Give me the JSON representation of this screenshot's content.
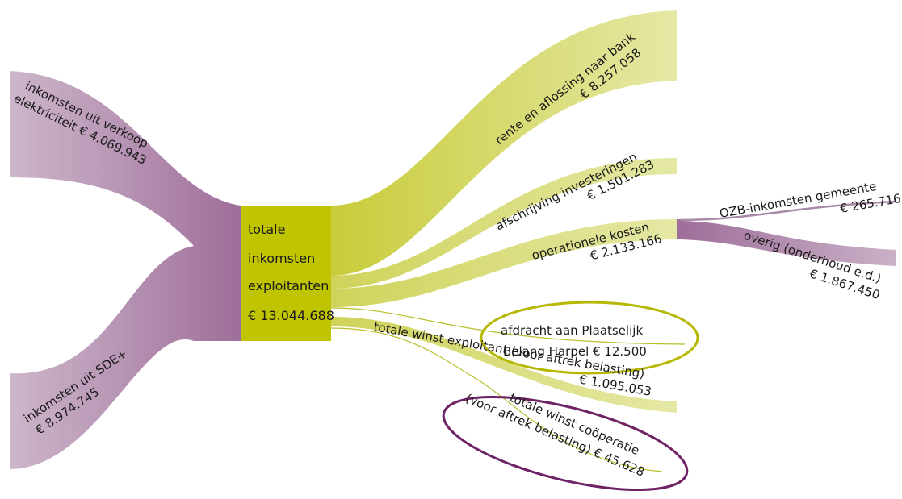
{
  "colors": {
    "purple": "#9f6e9a",
    "purple_light": "#cdb7cb",
    "green_node": "#c1c400",
    "green_flow": "#d6da7c",
    "green_light": "#e5e8a5",
    "green_line": "#b9bf2a",
    "ellipse_green": "#b5b700",
    "ellipse_purple": "#6e2266",
    "thin_purple": "#a889a8"
  },
  "chart_data": {
    "type": "sankey",
    "currency": "€",
    "center_node": {
      "lines": [
        "totale",
        "inkomsten",
        "exploitanten"
      ],
      "amount": "€ 13.044.688"
    },
    "sources": [
      {
        "line1": "inkomsten uit verkoop",
        "line2": "elektriciteit € 4.069.943",
        "value": 4069943
      },
      {
        "line1": "inkomsten uit SDE+",
        "line2": "€ 8.974.745",
        "value": 8974745
      }
    ],
    "targets": [
      {
        "line1": "rente en aflossing naar bank",
        "line2": "€ 8.257.058",
        "value": 8257058
      },
      {
        "line1": "afschrijving investeringen",
        "line2": "€ 1.501.283",
        "value": 1501283
      },
      {
        "line1": "operationele kosten",
        "line2": "€ 2.133.166",
        "value": 2133166
      },
      {
        "line1": "afdracht aan Plaatselijk",
        "line2": "Belang Harpel € 12.500",
        "value": 12500
      },
      {
        "line1": "totale winst exploitant (voor aftrek belasting)",
        "line2": "€ 1.095.053",
        "value": 1095053
      },
      {
        "line1": "totale winst coöperatie",
        "line2": "(voor aftrek belasting) € 45.628",
        "value": 45628
      }
    ],
    "sub_targets": [
      {
        "line1": "OZB-inkomsten gemeente",
        "line2": "€ 265.716",
        "value": 265716
      },
      {
        "line1": "overig (onderhoud e.d.)",
        "line2": "€ 1.867.450",
        "value": 1867450
      }
    ]
  }
}
